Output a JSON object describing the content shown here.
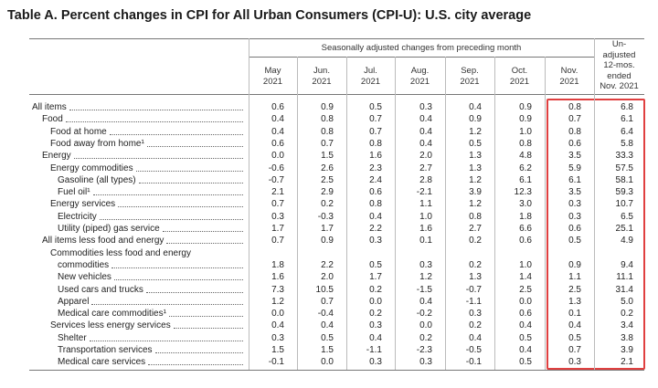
{
  "title": "Table A. Percent changes in CPI for All Urban Consumers (CPI-U): U.S. city average",
  "header": {
    "group": "Seasonally adjusted changes from preceding month",
    "columns": [
      {
        "month": "May",
        "year": "2021"
      },
      {
        "month": "Jun.",
        "year": "2021"
      },
      {
        "month": "Jul.",
        "year": "2021"
      },
      {
        "month": "Aug.",
        "year": "2021"
      },
      {
        "month": "Sep.",
        "year": "2021"
      },
      {
        "month": "Oct.",
        "year": "2021"
      },
      {
        "month": "Nov.",
        "year": "2021"
      }
    ],
    "unadjusted": [
      "Un-",
      "adjusted",
      "12-mos.",
      "ended",
      "Nov. 2021"
    ]
  },
  "rows": [
    {
      "label": "All items",
      "values": [
        "0.6",
        "0.9",
        "0.5",
        "0.3",
        "0.4",
        "0.9",
        "0.8",
        "6.8"
      ]
    },
    {
      "label": "Food",
      "values": [
        "0.4",
        "0.8",
        "0.7",
        "0.4",
        "0.9",
        "0.9",
        "0.7",
        "6.1"
      ]
    },
    {
      "label": "Food at home",
      "values": [
        "0.4",
        "0.8",
        "0.7",
        "0.4",
        "1.2",
        "1.0",
        "0.8",
        "6.4"
      ]
    },
    {
      "label": "Food away from home¹",
      "values": [
        "0.6",
        "0.7",
        "0.8",
        "0.4",
        "0.5",
        "0.8",
        "0.6",
        "5.8"
      ]
    },
    {
      "label": "Energy",
      "values": [
        "0.0",
        "1.5",
        "1.6",
        "2.0",
        "1.3",
        "4.8",
        "3.5",
        "33.3"
      ]
    },
    {
      "label": "Energy commodities",
      "values": [
        "-0.6",
        "2.6",
        "2.3",
        "2.7",
        "1.3",
        "6.2",
        "5.9",
        "57.5"
      ]
    },
    {
      "label": "Gasoline (all types)",
      "values": [
        "-0.7",
        "2.5",
        "2.4",
        "2.8",
        "1.2",
        "6.1",
        "6.1",
        "58.1"
      ]
    },
    {
      "label": "Fuel oil¹",
      "values": [
        "2.1",
        "2.9",
        "0.6",
        "-2.1",
        "3.9",
        "12.3",
        "3.5",
        "59.3"
      ]
    },
    {
      "label": "Energy services",
      "values": [
        "0.7",
        "0.2",
        "0.8",
        "1.1",
        "1.2",
        "3.0",
        "0.3",
        "10.7"
      ]
    },
    {
      "label": "Electricity",
      "values": [
        "0.3",
        "-0.3",
        "0.4",
        "1.0",
        "0.8",
        "1.8",
        "0.3",
        "6.5"
      ]
    },
    {
      "label": "Utility (piped) gas service",
      "values": [
        "1.7",
        "1.7",
        "2.2",
        "1.6",
        "2.7",
        "6.6",
        "0.6",
        "25.1"
      ]
    },
    {
      "label": "All items less food and energy",
      "values": [
        "0.7",
        "0.9",
        "0.3",
        "0.1",
        "0.2",
        "0.6",
        "0.5",
        "4.9"
      ]
    },
    {
      "label": [
        "Commodities less food and energy",
        "commodities"
      ],
      "values": [
        "1.8",
        "2.2",
        "0.5",
        "0.3",
        "0.2",
        "1.0",
        "0.9",
        "9.4"
      ]
    },
    {
      "label": "New vehicles",
      "values": [
        "1.6",
        "2.0",
        "1.7",
        "1.2",
        "1.3",
        "1.4",
        "1.1",
        "11.1"
      ]
    },
    {
      "label": "Used cars and trucks",
      "values": [
        "7.3",
        "10.5",
        "0.2",
        "-1.5",
        "-0.7",
        "2.5",
        "2.5",
        "31.4"
      ]
    },
    {
      "label": "Apparel",
      "values": [
        "1.2",
        "0.7",
        "0.0",
        "0.4",
        "-1.1",
        "0.0",
        "1.3",
        "5.0"
      ]
    },
    {
      "label": "Medical care commodities¹",
      "values": [
        "0.0",
        "-0.4",
        "0.2",
        "-0.2",
        "0.3",
        "0.6",
        "0.1",
        "0.2"
      ]
    },
    {
      "label": "Services less energy services",
      "values": [
        "0.4",
        "0.4",
        "0.3",
        "0.0",
        "0.2",
        "0.4",
        "0.4",
        "3.4"
      ]
    },
    {
      "label": "Shelter",
      "values": [
        "0.3",
        "0.5",
        "0.4",
        "0.2",
        "0.4",
        "0.5",
        "0.5",
        "3.8"
      ]
    },
    {
      "label": "Transportation services",
      "values": [
        "1.5",
        "1.5",
        "-1.1",
        "-2.3",
        "-0.5",
        "0.4",
        "0.7",
        "3.9"
      ]
    },
    {
      "label": "Medical care services",
      "values": [
        "-0.1",
        "0.0",
        "0.3",
        "0.3",
        "-0.1",
        "0.5",
        "0.3",
        "2.1"
      ]
    }
  ]
}
